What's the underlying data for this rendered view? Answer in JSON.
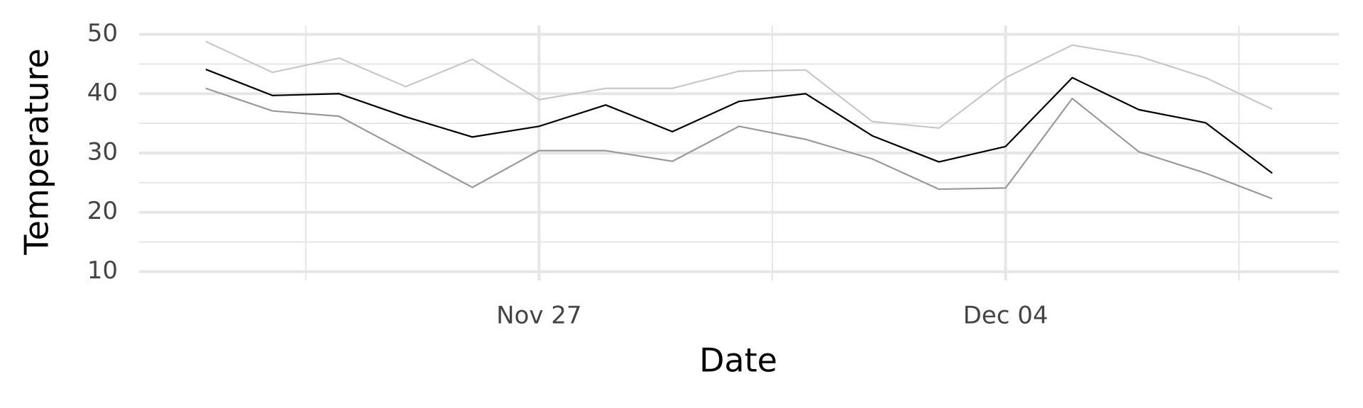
{
  "chart_data": {
    "type": "line",
    "x_label": "Date",
    "y_label": "Temperature",
    "x": [
      "Nov 22",
      "Nov 23",
      "Nov 24",
      "Nov 25",
      "Nov 26",
      "Nov 27",
      "Nov 28",
      "Nov 29",
      "Nov 30",
      "Dec 01",
      "Dec 02",
      "Dec 03",
      "Dec 04",
      "Dec 05",
      "Dec 06",
      "Dec 07",
      "Dec 08"
    ],
    "series": [
      {
        "color": "#c8c8c8",
        "values": [
          48.8,
          43.6,
          46.0,
          41.2,
          45.8,
          39.0,
          40.9,
          40.9,
          43.8,
          44.0,
          35.3,
          34.2,
          42.7,
          48.2,
          46.3,
          42.7,
          37.4
        ]
      },
      {
        "color": "#000000",
        "values": [
          44.1,
          39.7,
          40.0,
          36.1,
          32.7,
          34.5,
          38.1,
          33.6,
          38.7,
          40.0,
          32.9,
          28.5,
          31.1,
          42.7,
          37.3,
          35.1,
          26.6
        ]
      },
      {
        "color": "#999999",
        "values": [
          40.9,
          37.1,
          36.2,
          30.2,
          24.2,
          30.4,
          30.4,
          28.6,
          34.5,
          32.3,
          29.0,
          23.9,
          24.1,
          39.2,
          30.2,
          26.6,
          22.3
        ]
      }
    ],
    "xlim": [
      "Nov 21",
      "Dec 09"
    ],
    "xticks": [
      "Nov 27",
      "Dec 04"
    ],
    "ylim": [
      8.5,
      51.5
    ],
    "yticks": [
      10,
      20,
      30,
      40,
      50
    ],
    "grid": true
  }
}
